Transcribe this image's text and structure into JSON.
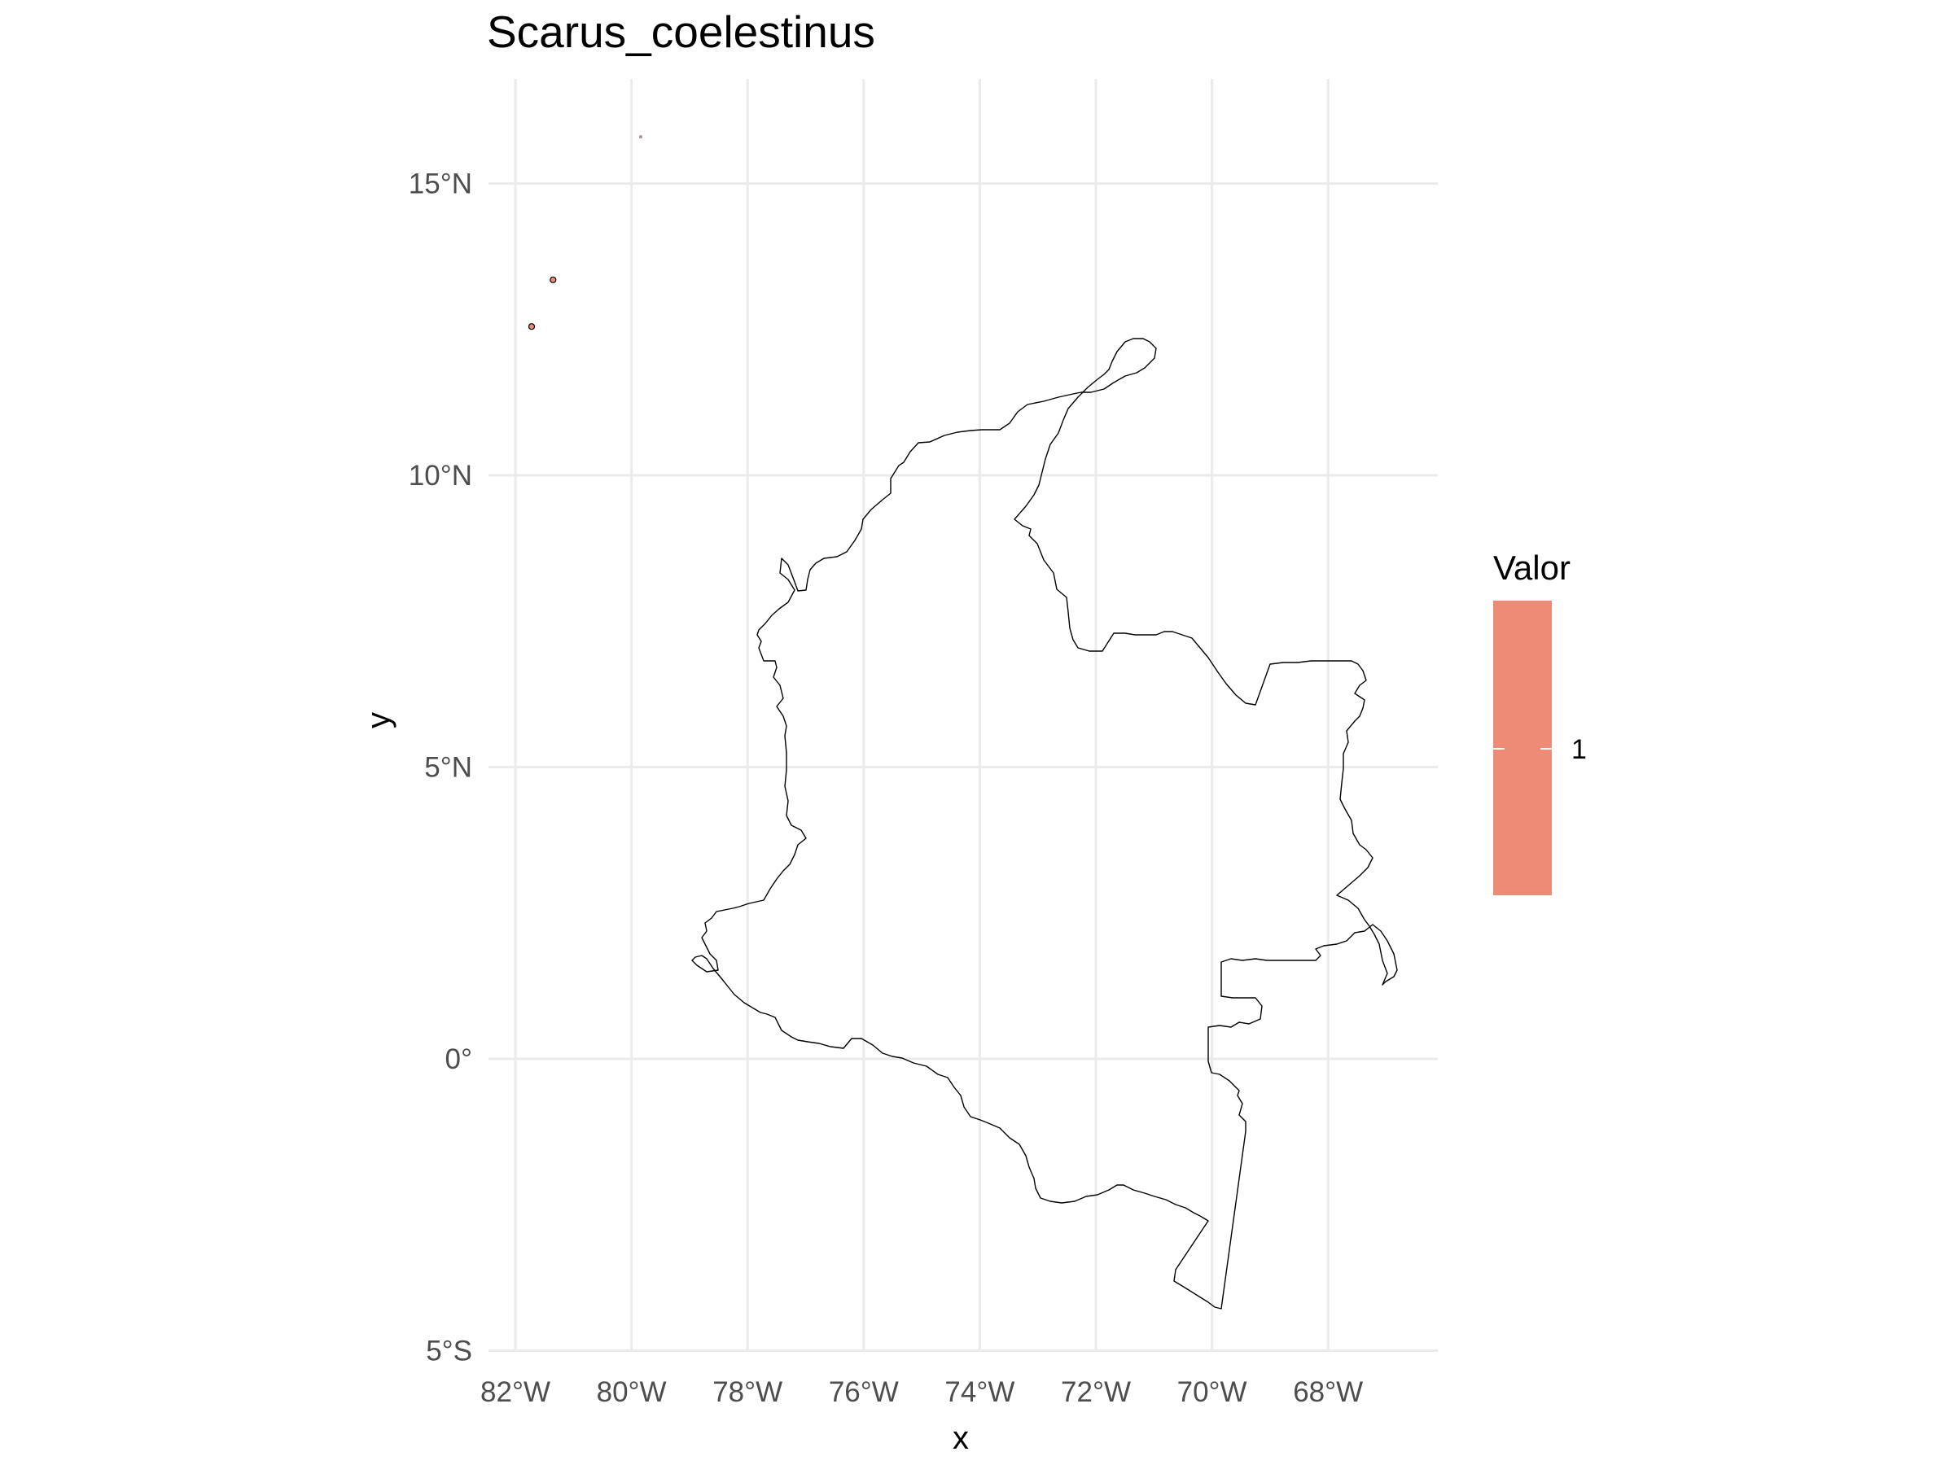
{
  "chart_data": {
    "type": "map",
    "title": "Scarus_coelestinus",
    "xlabel": "x",
    "ylabel": "y",
    "x_ticks": [
      {
        "value": -82,
        "label": "82°W"
      },
      {
        "value": -80,
        "label": "80°W"
      },
      {
        "value": -78,
        "label": "78°W"
      },
      {
        "value": -76,
        "label": "76°W"
      },
      {
        "value": -74,
        "label": "74°W"
      },
      {
        "value": -72,
        "label": "72°W"
      },
      {
        "value": -70,
        "label": "70°W"
      },
      {
        "value": -68,
        "label": "68°W"
      }
    ],
    "y_ticks": [
      {
        "value": 15,
        "label": "15°N"
      },
      {
        "value": 10,
        "label": "10°N"
      },
      {
        "value": 5,
        "label": "5°N"
      },
      {
        "value": 0,
        "label": "0°"
      },
      {
        "value": -5,
        "label": "5°S"
      }
    ],
    "xlim": [
      -82.0,
      -66.1
    ],
    "ylim": [
      -5.0,
      16.8
    ],
    "grid": true,
    "legend": {
      "title": "Valor",
      "position": "right",
      "entries": [
        {
          "label": "1",
          "value": 1,
          "color": "#ee8b77"
        }
      ]
    },
    "presence_points": [
      {
        "lon": -81.35,
        "lat": 13.35,
        "value": 1
      },
      {
        "lon": -81.72,
        "lat": 12.55,
        "value": 1
      },
      {
        "lon": -79.84,
        "lat": 15.8,
        "value": 1
      }
    ],
    "outline_color": "#000000",
    "fill_color": "#ee8b77"
  }
}
